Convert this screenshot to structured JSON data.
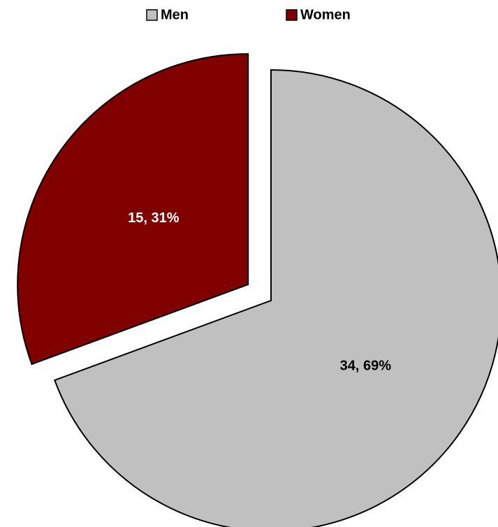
{
  "chart_data": {
    "type": "pie",
    "categories": [
      "Men",
      "Women"
    ],
    "values": [
      34,
      15
    ],
    "value_labels": [
      "34, 69%",
      "15, 31%"
    ],
    "colors": [
      "#c0c0c0",
      "#800000"
    ],
    "legend": "top"
  }
}
